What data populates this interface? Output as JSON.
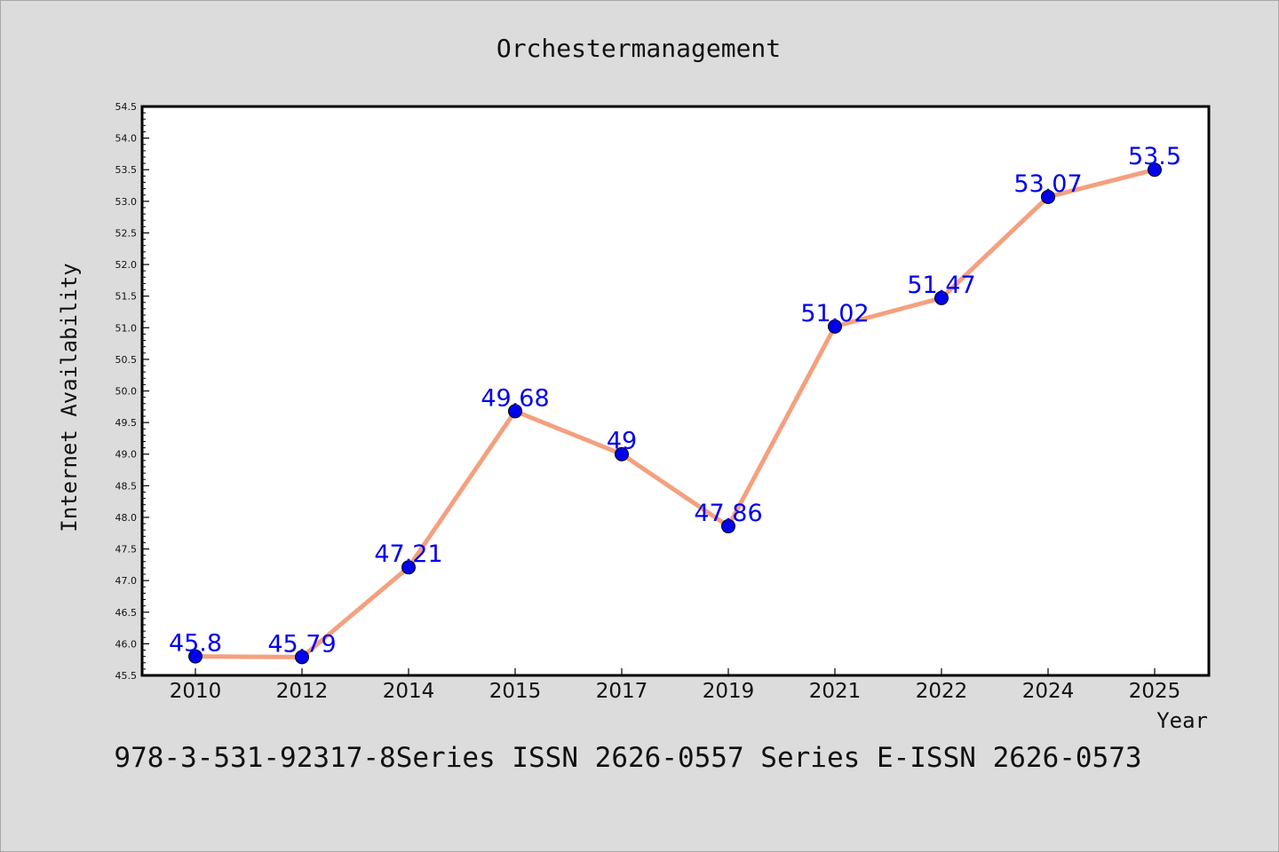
{
  "chart_data": {
    "type": "line",
    "title": "Orchestermanagement",
    "xlabel": "Year",
    "ylabel": "Internet Availability",
    "categories": [
      "2010",
      "2012",
      "2014",
      "2015",
      "2017",
      "2019",
      "2021",
      "2022",
      "2024",
      "2025"
    ],
    "series": [
      {
        "values": [
          45.8,
          45.79,
          47.21,
          49.68,
          49,
          47.86,
          51.02,
          51.47,
          53.07,
          53.5
        ],
        "data_labels": [
          "45.8",
          "45.79",
          "47.21",
          "49.68",
          "49",
          "47.86",
          "51.02",
          "51.47",
          "53.07",
          "53.5"
        ]
      }
    ],
    "ylim": [
      45.5,
      54.5
    ],
    "yticks": [
      "45.5",
      "46.0",
      "46.5",
      "47.0",
      "47.5",
      "48.0",
      "48.5",
      "49.0",
      "49.5",
      "50.0",
      "50.5",
      "51.0",
      "51.5",
      "52.0",
      "52.5",
      "53.0",
      "53.5",
      "54.0",
      "54.5"
    ],
    "grid": false,
    "colors": {
      "line": "#f4a07f",
      "marker": "#0000ee",
      "label": "#0000ee",
      "background": "#dcdcdc",
      "plot_background": "#ffffff"
    }
  },
  "footer": {
    "text": "978-3-531-92317-8Series ISSN 2626-0557 Series E-ISSN 2626-0573"
  }
}
